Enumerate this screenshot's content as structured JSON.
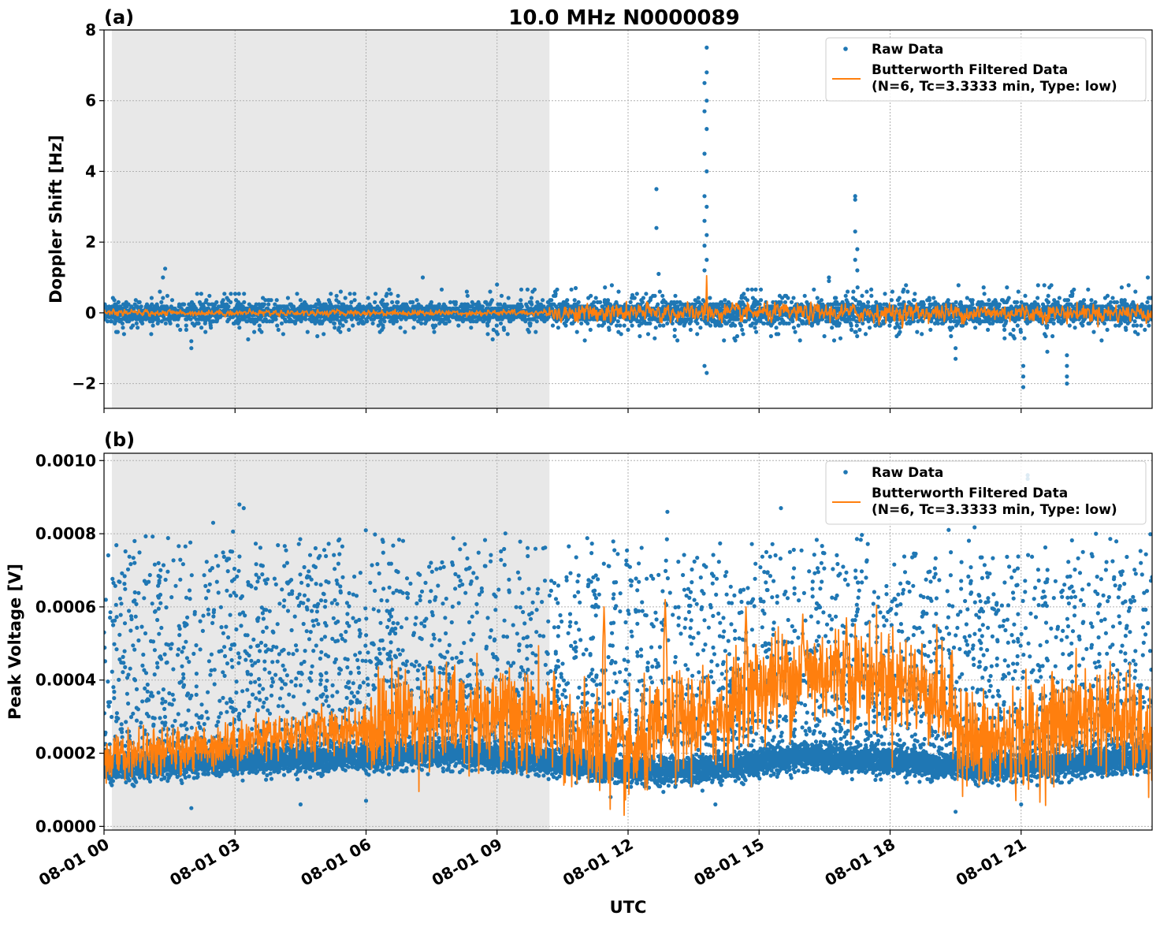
{
  "figure": {
    "title": "10.0 MHz N0000089",
    "xlabel": "UTC"
  },
  "colors": {
    "raw": "#1f77b4",
    "filtered": "#ff7f0e",
    "night_shade": "#e8e8e8",
    "grid": "#b0b0b0"
  },
  "chart_data": [
    {
      "panel": "(a)",
      "type": "scatter",
      "ylabel": "Doppler Shift [Hz]",
      "xlim": [
        0,
        24
      ],
      "ylim": [
        -2.7,
        8.0
      ],
      "yticks": [
        -2,
        0,
        2,
        4,
        6,
        8
      ],
      "yticklabels": [
        "−2",
        "0",
        "2",
        "4",
        "6",
        "8"
      ],
      "xticks": [
        0,
        3,
        6,
        9,
        12,
        15,
        18,
        21
      ],
      "xticklabels": [
        "08-01 00",
        "08-01 03",
        "08-01 06",
        "08-01 09",
        "08-01 12",
        "08-01 15",
        "08-01 18",
        "08-01 21"
      ],
      "shaded_region": [
        0.18,
        10.2
      ],
      "grid": true,
      "legend": {
        "placement": "top-right",
        "raw": "Raw Data",
        "filtered_line1": "Butterworth Filtered Data",
        "filtered_line2": "(N=6, Tc=3.3333 min, Type: low)"
      },
      "series": [
        {
          "name": "Raw Data",
          "kind": "scatter",
          "baseline": 0.0,
          "spread_early": 0.25,
          "spread_late": 0.3,
          "outliers": [
            [
              1.4,
              1.25
            ],
            [
              1.35,
              1.0
            ],
            [
              2.0,
              -1.0
            ],
            [
              2.0,
              -0.8
            ],
            [
              3.3,
              -0.75
            ],
            [
              7.3,
              1.0
            ],
            [
              8.9,
              -0.75
            ],
            [
              9.0,
              0.8
            ],
            [
              10.8,
              0.7
            ],
            [
              12.1,
              0.5
            ],
            [
              12.65,
              3.5
            ],
            [
              12.65,
              2.4
            ],
            [
              12.7,
              1.1
            ],
            [
              13.8,
              7.5
            ],
            [
              13.8,
              6.8
            ],
            [
              13.75,
              6.5
            ],
            [
              13.8,
              6.0
            ],
            [
              13.75,
              5.7
            ],
            [
              13.8,
              5.2
            ],
            [
              13.75,
              4.5
            ],
            [
              13.8,
              4.0
            ],
            [
              13.75,
              3.3
            ],
            [
              13.8,
              3.0
            ],
            [
              13.75,
              2.6
            ],
            [
              13.8,
              2.2
            ],
            [
              13.75,
              1.9
            ],
            [
              13.8,
              1.5
            ],
            [
              13.75,
              1.2
            ],
            [
              13.75,
              -1.5
            ],
            [
              13.8,
              -1.7
            ],
            [
              16.6,
              1.0
            ],
            [
              16.6,
              0.9
            ],
            [
              17.2,
              3.3
            ],
            [
              17.2,
              3.2
            ],
            [
              17.2,
              2.3
            ],
            [
              17.25,
              1.8
            ],
            [
              17.2,
              1.5
            ],
            [
              17.25,
              1.2
            ],
            [
              19.5,
              -1.0
            ],
            [
              19.5,
              -1.3
            ],
            [
              21.05,
              -1.5
            ],
            [
              21.05,
              -1.8
            ],
            [
              21.05,
              -2.1
            ],
            [
              21.6,
              -1.1
            ],
            [
              22.05,
              -1.2
            ],
            [
              22.05,
              -1.5
            ],
            [
              22.05,
              -1.8
            ],
            [
              22.05,
              -2.0
            ],
            [
              23.9,
              1.0
            ]
          ]
        },
        {
          "name": "Butterworth Filtered Data (N=6, Tc=3.3333 min, Type: low)",
          "kind": "line",
          "baseline": 0.0,
          "spread_early": 0.05,
          "spread_late": 0.15,
          "spikes": [
            [
              13.8,
              1.05
            ]
          ]
        }
      ]
    },
    {
      "panel": "(b)",
      "type": "scatter",
      "ylabel": "Peak Voltage [V]",
      "xlim": [
        0,
        24
      ],
      "ylim": [
        -1e-05,
        0.00102
      ],
      "yticks": [
        0.0,
        0.0002,
        0.0004,
        0.0006,
        0.0008,
        0.001
      ],
      "yticklabels": [
        "0.0000",
        "0.0002",
        "0.0004",
        "0.0006",
        "0.0008",
        "0.0010"
      ],
      "xticks": [
        0,
        3,
        6,
        9,
        12,
        15,
        18,
        21
      ],
      "xticklabels": [
        "08-01 00",
        "08-01 03",
        "08-01 06",
        "08-01 09",
        "08-01 12",
        "08-01 15",
        "08-01 18",
        "08-01 21"
      ],
      "shaded_region": [
        0.18,
        10.2
      ],
      "grid": true,
      "legend": {
        "placement": "top-right",
        "raw": "Raw Data",
        "filtered_line1": "Butterworth Filtered Data",
        "filtered_line2": "(N=6, Tc=3.3333 min, Type: low)"
      },
      "series": [
        {
          "name": "Raw Data",
          "kind": "scatter",
          "band_center": [
            [
              0,
              0.00016
            ],
            [
              3,
              0.00018
            ],
            [
              6,
              0.00019
            ],
            [
              8,
              0.0002
            ],
            [
              10,
              0.00018
            ],
            [
              11,
              0.00017
            ],
            [
              12,
              0.00015
            ],
            [
              14,
              0.00016
            ],
            [
              16,
              0.00019
            ],
            [
              18,
              0.00018
            ],
            [
              20,
              0.00016
            ],
            [
              22,
              0.00017
            ],
            [
              24,
              0.00019
            ]
          ],
          "scatter_range": [
            0.00022,
            0.00082
          ],
          "outliers": [
            [
              3.1,
              0.00088
            ],
            [
              3.2,
              0.00087
            ],
            [
              2.5,
              0.00083
            ],
            [
              12.9,
              0.00086
            ],
            [
              15.5,
              0.00087
            ],
            [
              21.15,
              0.00096
            ],
            [
              21.15,
              0.00095
            ],
            [
              0.7,
              0.00078
            ],
            [
              2.0,
              5e-05
            ],
            [
              4.5,
              6e-05
            ],
            [
              6.0,
              7e-05
            ],
            [
              19.5,
              4e-05
            ],
            [
              14.0,
              6e-05
            ],
            [
              21.0,
              6e-05
            ],
            [
              11.6,
              8e-05
            ]
          ]
        },
        {
          "name": "Butterworth Filtered Data (N=6, Tc=3.3333 min, Type: low)",
          "kind": "line",
          "trend": [
            [
              0,
              0.00019
            ],
            [
              2,
              0.00021
            ],
            [
              4,
              0.00025
            ],
            [
              6,
              0.00027
            ],
            [
              7,
              0.0003
            ],
            [
              9,
              0.00031
            ],
            [
              10,
              0.00028
            ],
            [
              11,
              0.00024
            ],
            [
              12,
              0.00019
            ],
            [
              13,
              0.00028
            ],
            [
              14,
              0.0003
            ],
            [
              15,
              0.00038
            ],
            [
              16,
              0.00042
            ],
            [
              17,
              0.00042
            ],
            [
              18,
              0.0004
            ],
            [
              19,
              0.00037
            ],
            [
              20,
              0.00022
            ],
            [
              21,
              0.00024
            ],
            [
              22,
              0.00029
            ],
            [
              23,
              0.00031
            ],
            [
              24,
              0.00023
            ]
          ],
          "peaks": [
            [
              11.45,
              0.0006
            ],
            [
              12.85,
              0.00062
            ],
            [
              14.7,
              0.0006
            ],
            [
              16.0,
              0.00058
            ],
            [
              17.0,
              0.00057
            ]
          ]
        }
      ]
    }
  ]
}
